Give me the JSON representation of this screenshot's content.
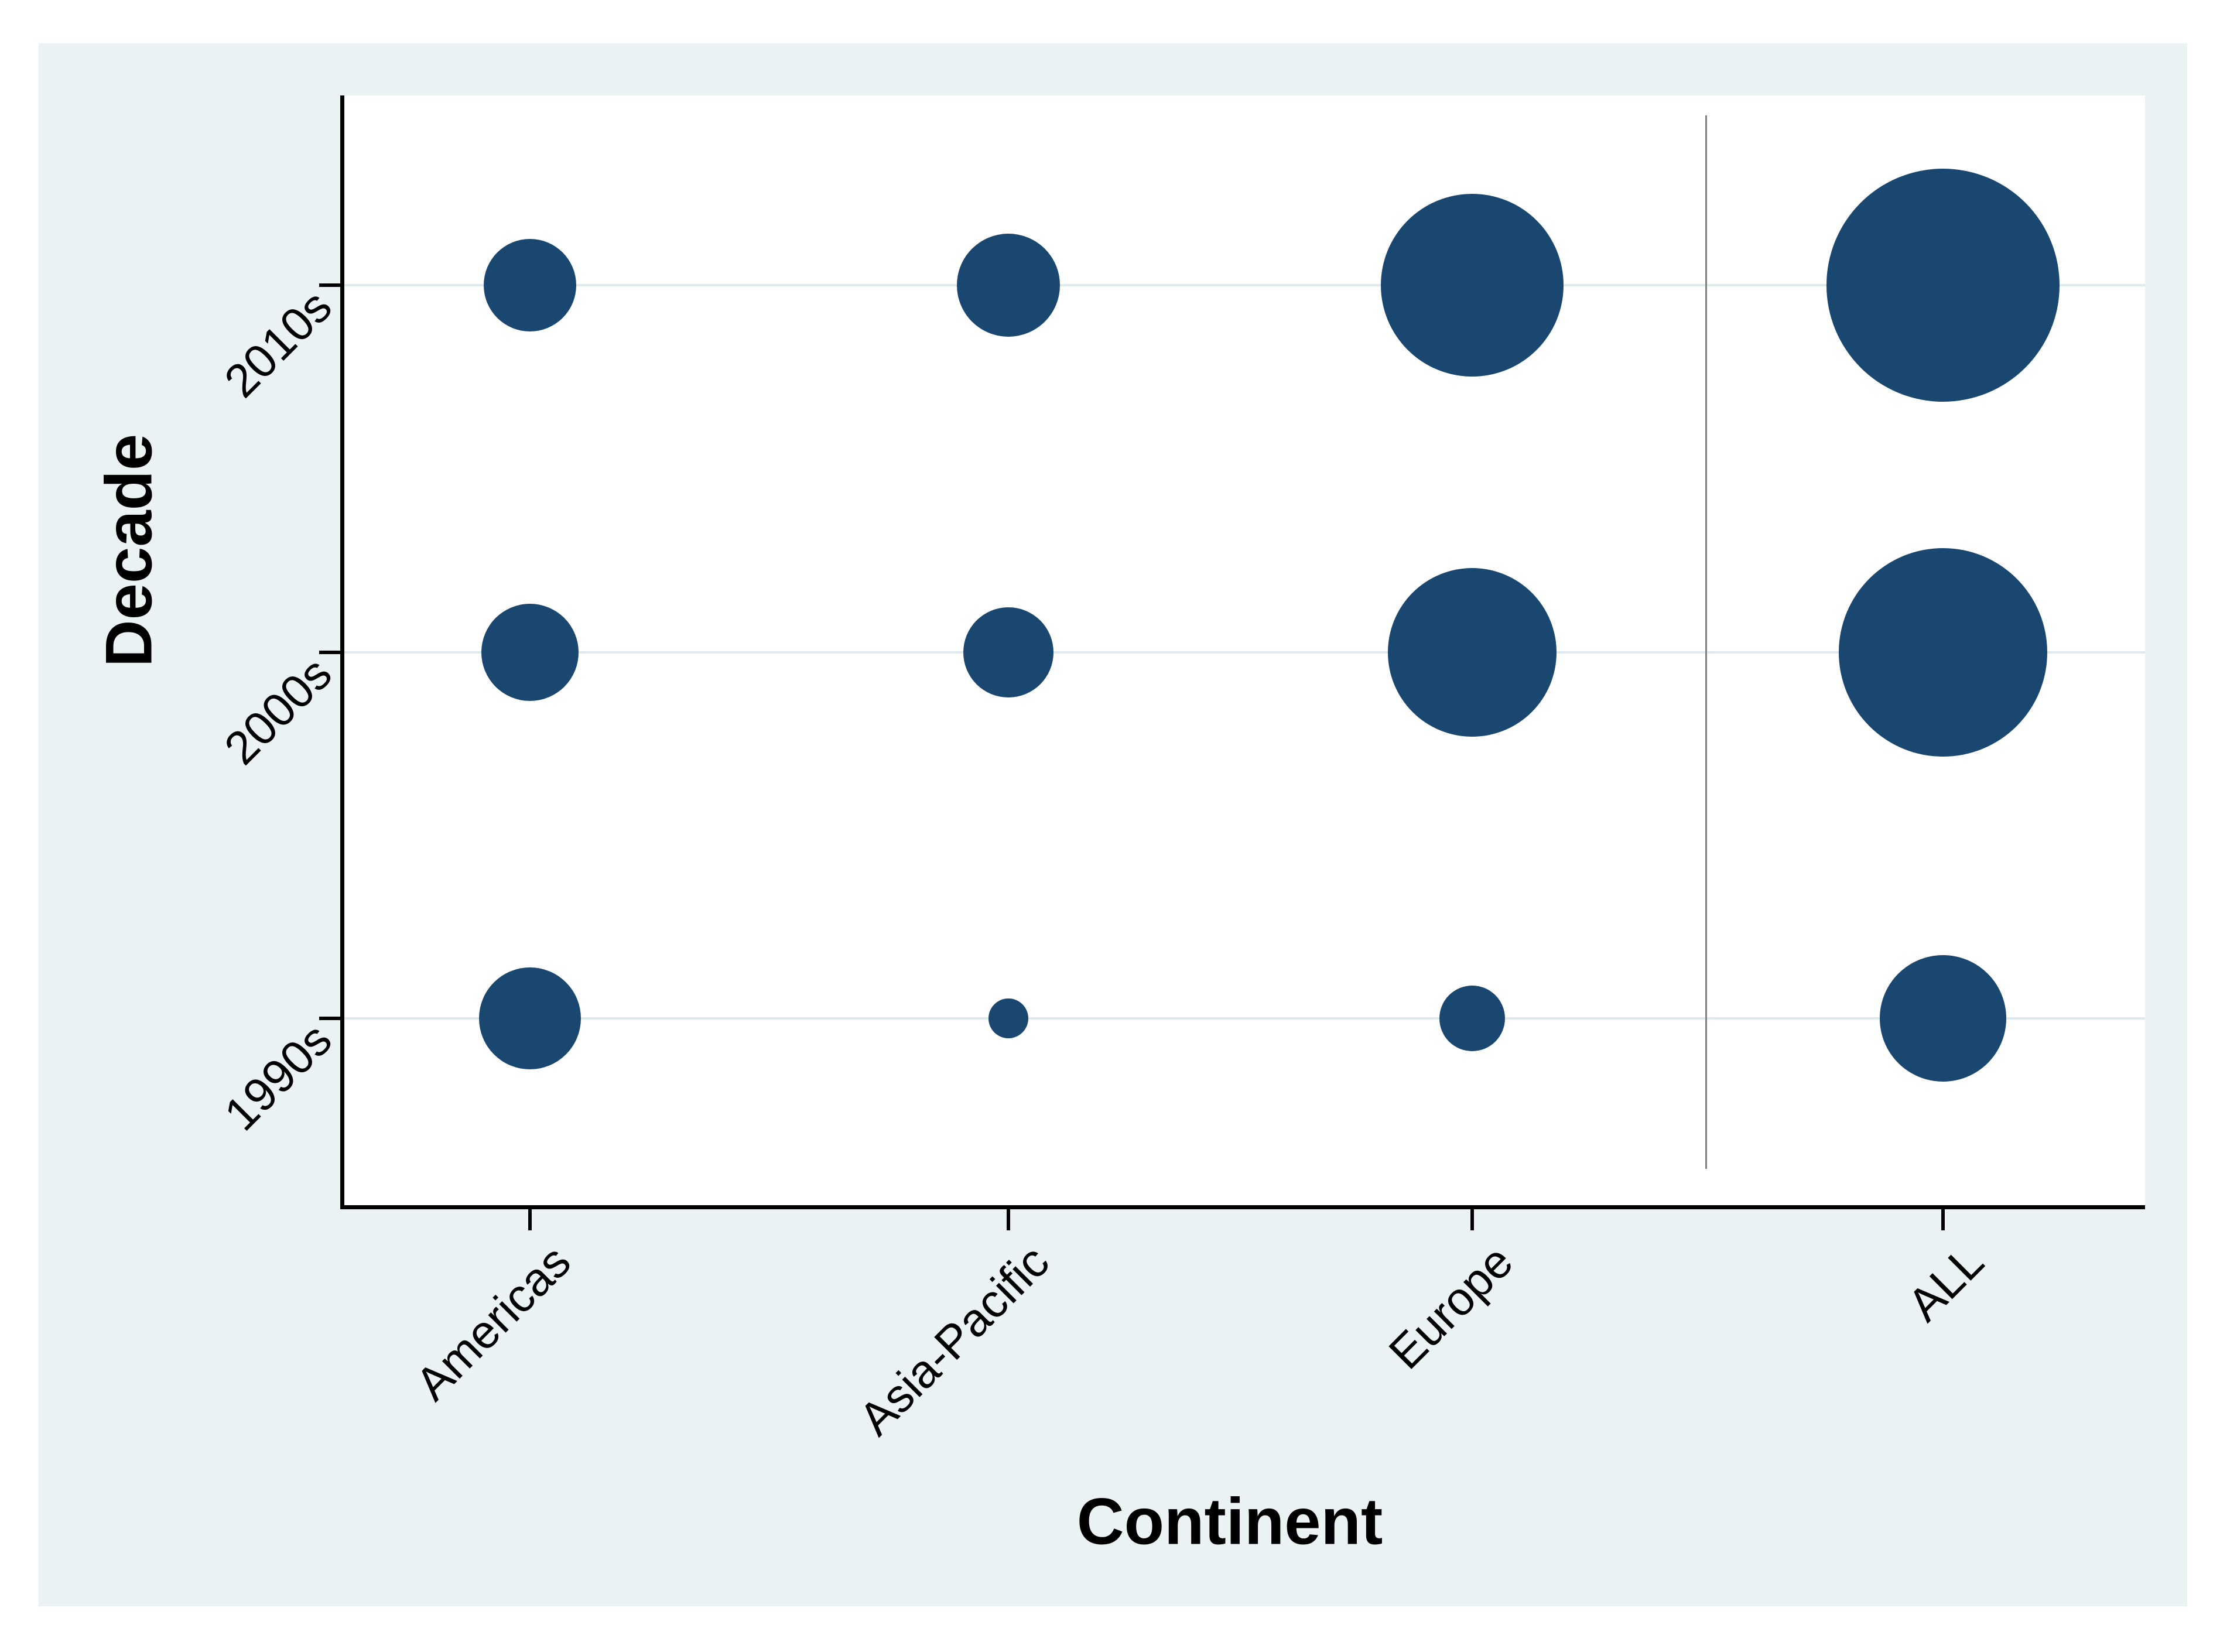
{
  "axes": {
    "x_title": "Continent",
    "y_title": "Decade"
  },
  "chart_data": {
    "type": "scatter",
    "subtype": "bubble",
    "title": "",
    "xlabel": "Continent",
    "ylabel": "Decade",
    "x_categories": [
      "Americas",
      "Asia-Pacific",
      "Europe",
      "ALL"
    ],
    "y_categories_top_to_bottom": [
      "2010s",
      "2000s",
      "1990s"
    ],
    "legend_position": "none",
    "grid": "pale horizontal gridline at each decade row",
    "separator_note": "thin vertical gray rule between Europe and ALL columns",
    "size_encoding": "bubble area encodes magnitude; no numeric labels are shown in the image",
    "bubbles": [
      {
        "x": "Americas",
        "y": "2010s",
        "radius_px": 79
      },
      {
        "x": "Asia-Pacific",
        "y": "2010s",
        "radius_px": 88
      },
      {
        "x": "Europe",
        "y": "2010s",
        "radius_px": 156
      },
      {
        "x": "ALL",
        "y": "2010s",
        "radius_px": 199
      },
      {
        "x": "Americas",
        "y": "2000s",
        "radius_px": 83
      },
      {
        "x": "Asia-Pacific",
        "y": "2000s",
        "radius_px": 77
      },
      {
        "x": "Europe",
        "y": "2000s",
        "radius_px": 144
      },
      {
        "x": "ALL",
        "y": "2000s",
        "radius_px": 178
      },
      {
        "x": "Americas",
        "y": "1990s",
        "radius_px": 87
      },
      {
        "x": "Asia-Pacific",
        "y": "1990s",
        "radius_px": 34
      },
      {
        "x": "Europe",
        "y": "1990s",
        "radius_px": 56
      },
      {
        "x": "ALL",
        "y": "1990s",
        "radius_px": 108
      }
    ]
  },
  "colors": {
    "page_bg": "#FFFFFF",
    "canvas_bg": "#EAF2F3",
    "plot_bg": "#FFFFFF",
    "bubble": "#1A476F",
    "gridline": "#DFEAEF",
    "axis_line": "#000000",
    "separator": "#808080",
    "text": "#000000"
  }
}
